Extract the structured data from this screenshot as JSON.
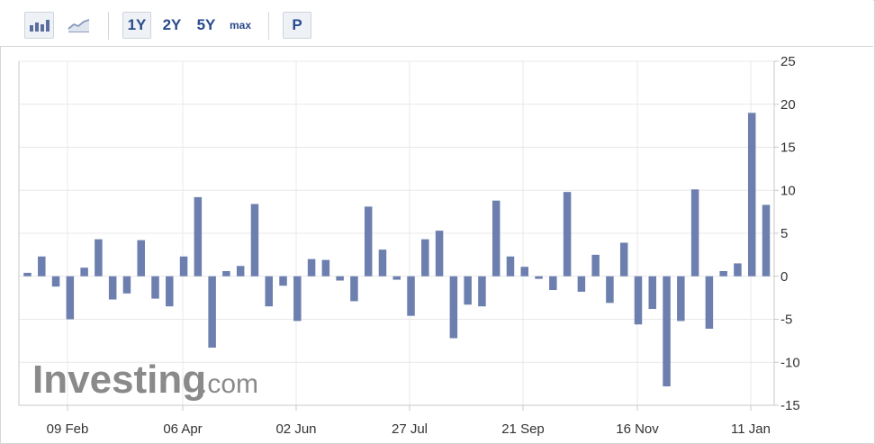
{
  "toolbar": {
    "bar_icon": "bar-chart-icon",
    "line_icon": "line-chart-icon",
    "ranges": [
      "1Y",
      "2Y",
      "5Y",
      "max"
    ],
    "active_range": "1Y",
    "p_label": "P"
  },
  "watermark": {
    "brand": "Investing",
    "suffix": ".com"
  },
  "colors": {
    "bar": "#6c7fae",
    "grid": "#e8e8e8",
    "axis": "#c8c8c8",
    "text": "#333333",
    "watermark": "#8a8a8a"
  },
  "chart_data": {
    "type": "bar",
    "x_tick_labels": [
      "09 Feb",
      "06 Apr",
      "02 Jun",
      "27 Jul",
      "21 Sep",
      "16 Nov",
      "11 Jan"
    ],
    "y_tick_labels": [
      "25",
      "20",
      "15",
      "10",
      "5",
      "0",
      "-5",
      "-10",
      "-15"
    ],
    "ylim": [
      -15,
      25
    ],
    "values": [
      0.4,
      2.3,
      -1.2,
      -5.0,
      1.0,
      4.3,
      -2.7,
      -2.0,
      4.2,
      -2.6,
      -3.5,
      2.3,
      9.2,
      -8.3,
      0.6,
      1.2,
      8.4,
      -3.5,
      -1.1,
      -5.2,
      2.0,
      1.9,
      -0.5,
      -2.9,
      8.1,
      3.1,
      -0.4,
      -4.6,
      4.3,
      5.3,
      -7.2,
      -3.3,
      -3.5,
      8.8,
      2.3,
      1.1,
      -0.3,
      -1.6,
      9.8,
      -1.8,
      2.5,
      -3.1,
      3.9,
      -5.6,
      -3.8,
      -12.8,
      -5.2,
      10.1,
      -6.1,
      0.6,
      1.5,
      19.0,
      8.3
    ],
    "grid": true,
    "y_axis_position": "right"
  }
}
